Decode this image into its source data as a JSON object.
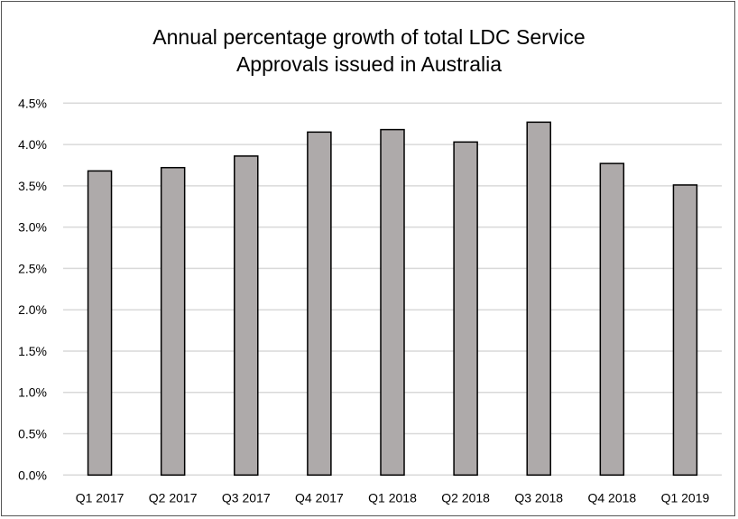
{
  "chart_data": {
    "type": "bar",
    "title_lines": [
      "Annual percentage growth of total LDC Service",
      "Approvals issued in Australia"
    ],
    "categories": [
      "Q1 2017",
      "Q2 2017",
      "Q3 2017",
      "Q4 2017",
      "Q1 2018",
      "Q2 2018",
      "Q3 2018",
      "Q4 2018",
      "Q1 2019"
    ],
    "values": [
      3.68,
      3.72,
      3.86,
      4.15,
      4.18,
      4.03,
      4.27,
      3.77,
      3.51
    ],
    "unit": "%",
    "ylim": [
      0,
      4.5
    ],
    "yticks": [
      "0.0%",
      "0.5%",
      "1.0%",
      "1.5%",
      "2.0%",
      "2.5%",
      "3.0%",
      "3.5%",
      "4.0%",
      "4.5%"
    ],
    "xlabel": "",
    "ylabel": "",
    "grid": true,
    "legend": "none",
    "colors": {
      "bar": "#aeaaaa",
      "bar_edge": "#000000",
      "grid": "#d9d9d9"
    }
  }
}
